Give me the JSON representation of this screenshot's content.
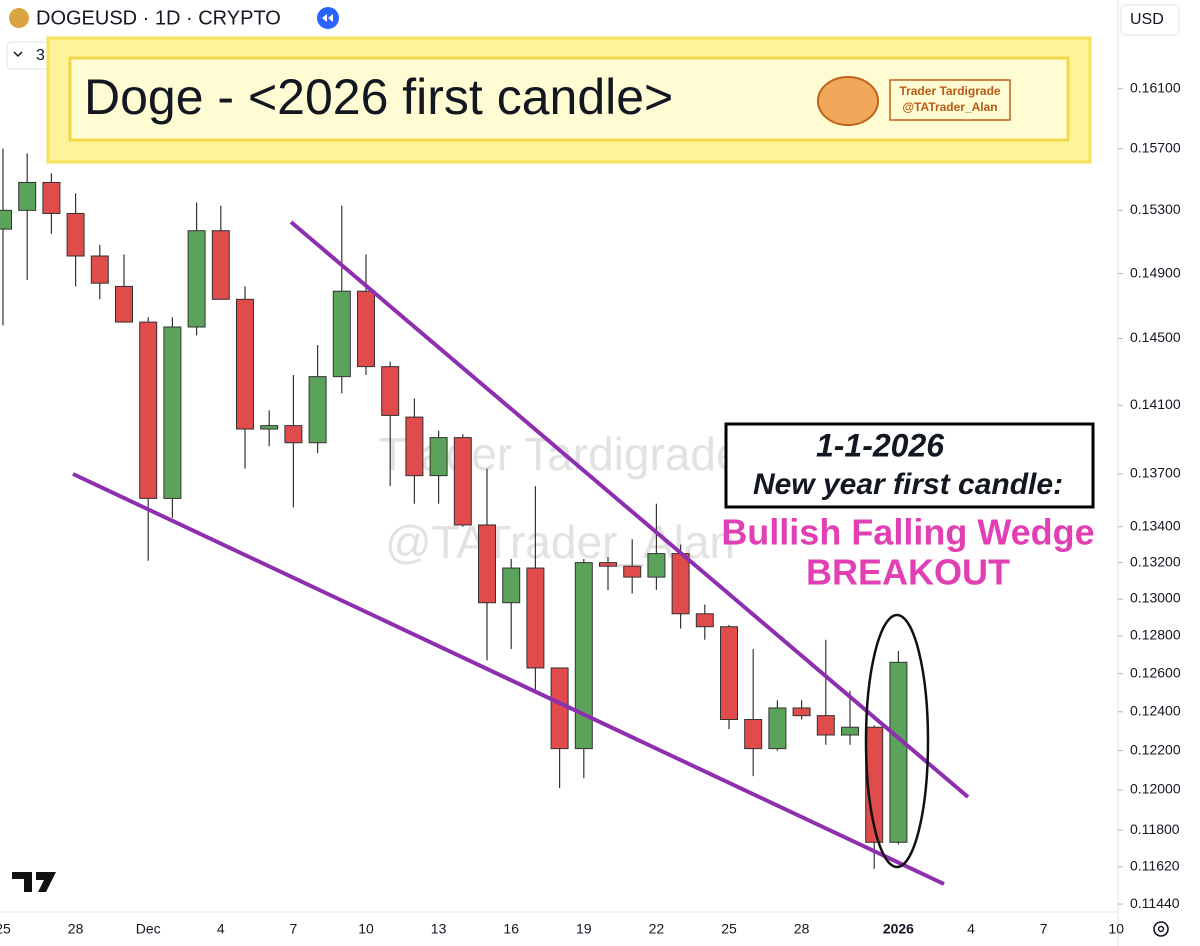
{
  "chart_data": {
    "type": "candlestick",
    "symbol": "DOGEUSD · 1D · CRYPTO",
    "indicator_count": 3,
    "currency": "USD",
    "title": "Doge - <2026 first candle>",
    "badge": [
      "Trader Tardigrade",
      "@TATrader_Alan"
    ],
    "watermark": [
      "Trader Tardigrade",
      "@TATrader_Alan"
    ],
    "annotations": [
      "1-1-2026",
      "New year first candle:",
      "Bullish Falling Wedge",
      "BREAKOUT"
    ],
    "categories": [
      "25",
      null,
      null,
      "28",
      null,
      null,
      "Dec",
      null,
      null,
      "4",
      null,
      null,
      "7",
      null,
      null,
      "10",
      null,
      null,
      "13",
      null,
      null,
      "16",
      null,
      null,
      "19",
      null,
      null,
      "22",
      null,
      null,
      "25",
      null,
      null,
      "28",
      null,
      null,
      null,
      "2026",
      null,
      null,
      "4",
      null,
      null,
      "7",
      null,
      null,
      "10"
    ],
    "open": [
      0.1518,
      0.153,
      0.1548,
      0.1528,
      0.1501,
      0.1482,
      0.146,
      0.1356,
      0.1457,
      0.1517,
      0.1474,
      0.1396,
      0.1398,
      0.1388,
      0.1427,
      0.1479,
      0.1433,
      0.1403,
      0.1369,
      0.1391,
      0.1341,
      0.1298,
      0.1317,
      0.1263,
      0.1221,
      0.132,
      0.1318,
      0.1312,
      0.1325,
      0.1292,
      0.1285,
      0.1236,
      0.1221,
      0.1242,
      0.1238,
      0.1228,
      0.1232,
      0.1174,
      null,
      null,
      null,
      null,
      null,
      null,
      null,
      null,
      null
    ],
    "high": [
      0.157,
      0.1567,
      0.1554,
      0.1541,
      0.1508,
      0.1502,
      0.1463,
      0.1463,
      0.1535,
      0.1533,
      0.1482,
      0.1407,
      0.1428,
      0.1446,
      0.1533,
      0.1502,
      0.1436,
      0.1414,
      0.1395,
      0.1393,
      0.1373,
      0.1322,
      0.1363,
      0.1263,
      0.1322,
      0.1323,
      0.1333,
      0.1353,
      0.133,
      0.1297,
      0.1286,
      0.1273,
      0.1246,
      0.1246,
      0.1278,
      0.1251,
      0.1233,
      0.1272,
      null,
      null,
      null,
      null,
      null,
      null,
      null,
      null,
      null
    ],
    "low": [
      0.1458,
      0.1486,
      0.1515,
      0.1482,
      0.1474,
      0.146,
      0.1321,
      0.1345,
      0.1452,
      0.1474,
      0.1373,
      0.1386,
      0.1351,
      0.1382,
      0.1417,
      0.1428,
      0.1363,
      0.1353,
      0.1353,
      0.134,
      0.1267,
      0.1273,
      0.1251,
      0.1201,
      0.1206,
      0.1305,
      0.1303,
      0.1305,
      0.1284,
      0.1278,
      0.1231,
      0.1207,
      0.122,
      0.1236,
      0.1223,
      0.1223,
      0.1161,
      0.1173,
      null,
      null,
      null,
      null,
      null,
      null,
      null,
      null,
      null
    ],
    "close": [
      0.153,
      0.1548,
      0.1528,
      0.1501,
      0.1484,
      0.146,
      0.1356,
      0.1457,
      0.1517,
      0.1474,
      0.1396,
      0.1398,
      0.1388,
      0.1427,
      0.1479,
      0.1433,
      0.1404,
      0.1369,
      0.1391,
      0.1341,
      0.1298,
      0.1317,
      0.1263,
      0.1221,
      0.132,
      0.1318,
      0.1312,
      0.1325,
      0.1292,
      0.1285,
      0.1236,
      0.1221,
      0.1242,
      0.1238,
      0.1228,
      0.1232,
      0.1174,
      0.1266,
      null,
      null,
      null,
      null,
      null,
      null,
      null,
      null,
      null
    ],
    "up_color": "#5ba35b",
    "down_color": "#e04b4b",
    "log_scale": true,
    "ylim": [
      0.11402,
      0.1671
    ],
    "yticks": [
      {
        "value": 0.161,
        "label": "0.16100"
      },
      {
        "value": 0.157,
        "label": "0.15700"
      },
      {
        "value": 0.153,
        "label": "0.15300"
      },
      {
        "value": 0.149,
        "label": "0.14900"
      },
      {
        "value": 0.145,
        "label": "0.14500"
      },
      {
        "value": 0.141,
        "label": "0.14100"
      },
      {
        "value": 0.137,
        "label": "0.13700"
      },
      {
        "value": 0.134,
        "label": "0.13400"
      },
      {
        "value": 0.132,
        "label": "0.13200"
      },
      {
        "value": 0.13,
        "label": "0.13000"
      },
      {
        "value": 0.128,
        "label": "0.12800"
      },
      {
        "value": 0.126,
        "label": "0.12600"
      },
      {
        "value": 0.124,
        "label": "0.12400"
      },
      {
        "value": 0.122,
        "label": "0.12200"
      },
      {
        "value": 0.12,
        "label": "0.12000"
      },
      {
        "value": 0.118,
        "label": "0.11800"
      },
      {
        "value": 0.1162,
        "label": "0.11620"
      },
      {
        "value": 0.1144,
        "label": "0.11440"
      }
    ],
    "grid": false
  }
}
